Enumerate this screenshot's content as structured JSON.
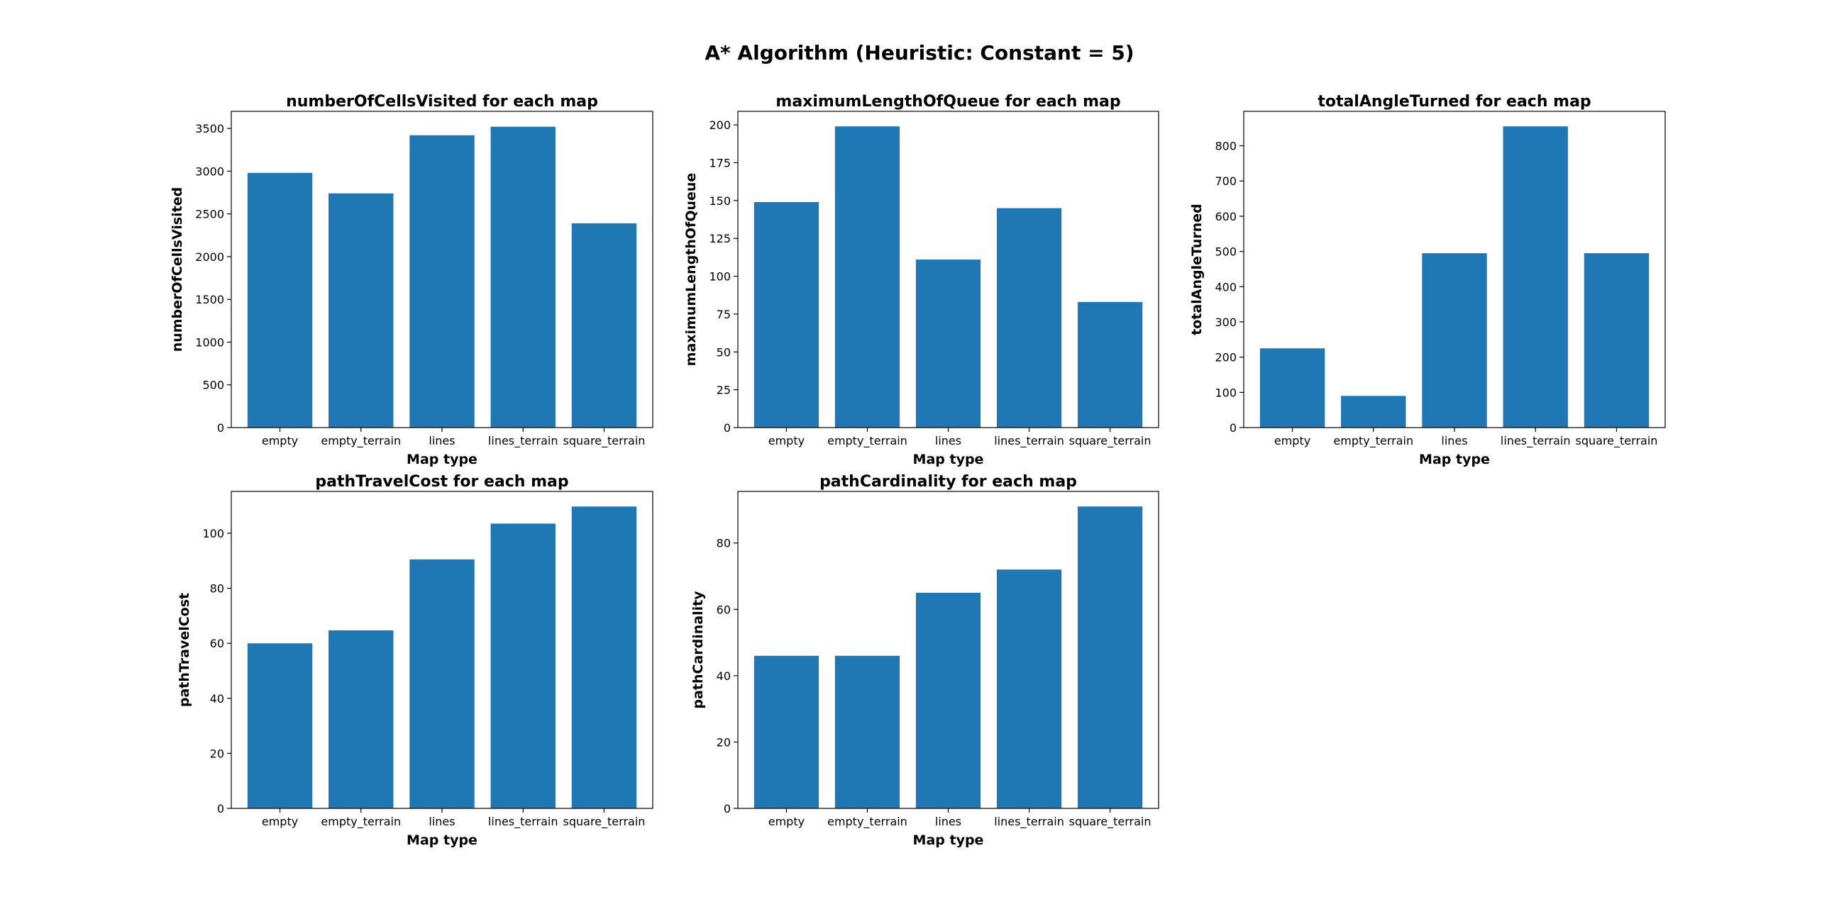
{
  "figure": {
    "suptitle": "A* Algorithm (Heuristic: Constant = 5)"
  },
  "style": {
    "bar_color": "#1f77b4",
    "axis_color": "#000000",
    "background": "#ffffff"
  },
  "chart_data": [
    {
      "type": "bar",
      "title": "numberOfCellsVisited for each map",
      "xlabel": "Map type",
      "ylabel": "numberOfCellsVisited",
      "categories": [
        "empty",
        "empty_terrain",
        "lines",
        "lines_terrain",
        "square_terrain"
      ],
      "values": [
        2980,
        2740,
        3420,
        3520,
        2390
      ],
      "ylim": [
        0,
        3700
      ],
      "yticks": [
        0,
        500,
        1000,
        1500,
        2000,
        2500,
        3000,
        3500
      ],
      "grid": false
    },
    {
      "type": "bar",
      "title": "maximumLengthOfQueue for each map",
      "xlabel": "Map type",
      "ylabel": "maximumLengthOfQueue",
      "categories": [
        "empty",
        "empty_terrain",
        "lines",
        "lines_terrain",
        "square_terrain"
      ],
      "values": [
        149,
        199,
        111,
        145,
        83
      ],
      "ylim": [
        0,
        208.95
      ],
      "yticks": [
        0,
        25,
        50,
        75,
        100,
        125,
        150,
        175,
        200
      ],
      "grid": false
    },
    {
      "type": "bar",
      "title": "totalAngleTurned for each map",
      "xlabel": "Map type",
      "ylabel": "totalAngleTurned",
      "categories": [
        "empty",
        "empty_terrain",
        "lines",
        "lines_terrain",
        "square_terrain"
      ],
      "values": [
        225,
        90,
        495,
        855,
        495
      ],
      "ylim": [
        0,
        897.75
      ],
      "yticks": [
        0,
        100,
        200,
        300,
        400,
        500,
        600,
        700,
        800
      ],
      "grid": false
    },
    {
      "type": "bar",
      "title": "pathTravelCost for each map",
      "xlabel": "Map type",
      "ylabel": "pathTravelCost",
      "categories": [
        "empty",
        "empty_terrain",
        "lines",
        "lines_terrain",
        "square_terrain"
      ],
      "values": [
        60,
        64.7,
        90.5,
        103.5,
        109.7
      ],
      "ylim": [
        0,
        115.2
      ],
      "yticks": [
        0,
        20,
        40,
        60,
        80,
        100
      ],
      "grid": false
    },
    {
      "type": "bar",
      "title": "pathCardinality for each map",
      "xlabel": "Map type",
      "ylabel": "pathCardinality",
      "categories": [
        "empty",
        "empty_terrain",
        "lines",
        "lines_terrain",
        "square_terrain"
      ],
      "values": [
        46,
        46,
        65,
        72,
        91
      ],
      "ylim": [
        0,
        95.55
      ],
      "yticks": [
        0,
        20,
        40,
        60,
        80
      ],
      "grid": false
    }
  ]
}
